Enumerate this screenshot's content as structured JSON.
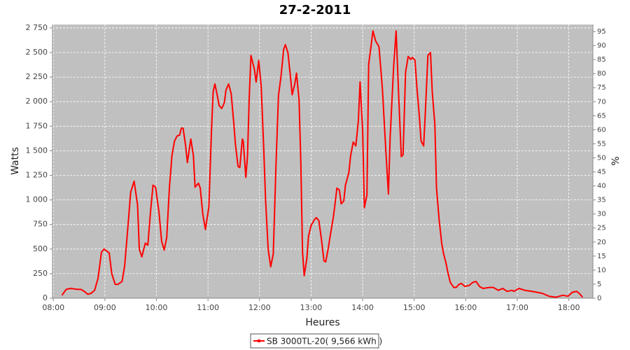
{
  "chart_data": {
    "type": "line",
    "title": "27-2-2011",
    "x_label": "Heures",
    "y_label": "Watts",
    "y2_label": "%",
    "x": [
      "08:10",
      "08:15",
      "08:20",
      "08:28",
      "08:32",
      "08:36",
      "08:40",
      "08:44",
      "08:48",
      "08:52",
      "08:56",
      "08:59",
      "09:02",
      "09:05",
      "09:08",
      "09:12",
      "09:15",
      "09:20",
      "09:23",
      "09:27",
      "09:30",
      "09:34",
      "09:38",
      "09:40",
      "09:43",
      "09:47",
      "09:50",
      "09:53",
      "09:56",
      "09:59",
      "10:03",
      "10:06",
      "10:09",
      "10:12",
      "10:15",
      "10:18",
      "10:21",
      "10:24",
      "10:27",
      "10:29",
      "10:31",
      "10:34",
      "10:36",
      "10:40",
      "10:43",
      "10:45",
      "10:49",
      "10:51",
      "10:54",
      "10:57",
      "11:01",
      "11:04",
      "11:06",
      "11:08",
      "11:10",
      "11:13",
      "11:16",
      "11:19",
      "11:21",
      "11:24",
      "11:27",
      "11:30",
      "11:32",
      "11:35",
      "11:37",
      "11:40",
      "11:41",
      "11:44",
      "11:46",
      "11:48",
      "11:50",
      "11:54",
      "11:56",
      "11:59",
      "12:02",
      "12:05",
      "12:07",
      "12:10",
      "12:13",
      "12:16",
      "12:19",
      "12:22",
      "12:25",
      "12:28",
      "12:30",
      "12:33",
      "12:36",
      "12:38",
      "12:41",
      "12:43",
      "12:46",
      "12:48",
      "12:50",
      "12:52",
      "12:55",
      "12:57",
      "13:00",
      "13:04",
      "13:06",
      "13:09",
      "13:12",
      "13:15",
      "13:17",
      "13:20",
      "13:22",
      "13:26",
      "13:28",
      "13:30",
      "13:33",
      "13:35",
      "13:38",
      "13:40",
      "13:44",
      "13:46",
      "13:49",
      "13:52",
      "13:55",
      "13:57",
      "14:00",
      "14:02",
      "14:05",
      "14:07",
      "14:10",
      "14:12",
      "14:15",
      "14:19",
      "14:21",
      "14:23",
      "14:27",
      "14:30",
      "14:32",
      "14:36",
      "14:39",
      "14:42",
      "14:45",
      "14:47",
      "14:50",
      "14:53",
      "14:56",
      "14:58",
      "15:01",
      "15:03",
      "15:06",
      "15:08",
      "15:11",
      "15:13",
      "15:16",
      "15:19",
      "15:21",
      "15:24",
      "15:26",
      "15:29",
      "15:32",
      "15:34",
      "15:37",
      "15:39",
      "15:42",
      "15:46",
      "15:49",
      "15:52",
      "15:55",
      "15:59",
      "16:04",
      "16:08",
      "16:12",
      "16:16",
      "16:20",
      "16:28",
      "16:32",
      "16:38",
      "16:43",
      "16:48",
      "16:54",
      "16:56",
      "17:02",
      "17:09",
      "17:17",
      "17:23",
      "17:29",
      "17:37",
      "17:45",
      "17:53",
      "17:59",
      "18:04",
      "18:09",
      "18:12",
      "18:16"
    ],
    "series": [
      {
        "name": "SB 3000TL-20( 9,566 kWh )",
        "color": "#ff0000",
        "values": [
          30,
          90,
          100,
          90,
          90,
          70,
          40,
          50,
          80,
          200,
          470,
          500,
          480,
          460,
          250,
          140,
          140,
          170,
          330,
          750,
          1080,
          1190,
          950,
          500,
          420,
          560,
          540,
          870,
          1150,
          1130,
          870,
          580,
          490,
          620,
          1110,
          1450,
          1600,
          1650,
          1660,
          1730,
          1730,
          1550,
          1380,
          1620,
          1450,
          1130,
          1170,
          1120,
          850,
          700,
          930,
          1700,
          2100,
          2180,
          2100,
          1960,
          1930,
          1990,
          2120,
          2180,
          2080,
          1780,
          1560,
          1340,
          1330,
          1620,
          1600,
          1230,
          1450,
          2050,
          2470,
          2330,
          2200,
          2420,
          2150,
          1500,
          1000,
          500,
          320,
          450,
          1320,
          2060,
          2260,
          2530,
          2580,
          2500,
          2250,
          2070,
          2180,
          2290,
          2020,
          1400,
          470,
          230,
          400,
          630,
          740,
          800,
          820,
          790,
          600,
          380,
          370,
          510,
          620,
          830,
          970,
          1120,
          1100,
          960,
          990,
          1150,
          1280,
          1450,
          1590,
          1550,
          1800,
          2200,
          1700,
          920,
          1050,
          2380,
          2580,
          2720,
          2620,
          2560,
          2350,
          2130,
          1500,
          1060,
          1630,
          2350,
          2720,
          2050,
          1440,
          1460,
          2300,
          2460,
          2430,
          2450,
          2420,
          2160,
          1850,
          1600,
          1550,
          1900,
          2470,
          2500,
          2100,
          1770,
          1120,
          800,
          560,
          460,
          360,
          270,
          160,
          110,
          110,
          140,
          150,
          120,
          130,
          160,
          170,
          120,
          100,
          110,
          110,
          80,
          100,
          70,
          80,
          70,
          100,
          80,
          70,
          60,
          50,
          20,
          10,
          30,
          20,
          60,
          70,
          50,
          10
        ]
      }
    ],
    "xlim": [
      "07:59",
      "18:28"
    ],
    "xticks": [
      "08:00",
      "09:00",
      "10:00",
      "11:00",
      "12:00",
      "13:00",
      "14:00",
      "15:00",
      "16:00",
      "17:00",
      "18:00"
    ],
    "ylim": [
      0,
      2785
    ],
    "yticks": [
      0,
      250,
      500,
      750,
      {
        "value": 1000,
        "label": "1 000"
      },
      {
        "value": 1250,
        "label": "1 250"
      },
      {
        "value": 1500,
        "label": "1 500"
      },
      {
        "value": 1750,
        "label": "1 750"
      },
      {
        "value": 2000,
        "label": "2 000"
      },
      {
        "value": 2250,
        "label": "2 250"
      },
      {
        "value": 2500,
        "label": "2 500"
      },
      {
        "value": 2750,
        "label": "2 750"
      }
    ],
    "y2lim": [
      0,
      97.5
    ],
    "y2ticks": [
      0,
      5,
      10,
      15,
      20,
      25,
      30,
      35,
      40,
      45,
      50,
      55,
      60,
      65,
      70,
      75,
      80,
      85,
      90,
      95
    ],
    "grid": true,
    "legend": "bottom"
  }
}
